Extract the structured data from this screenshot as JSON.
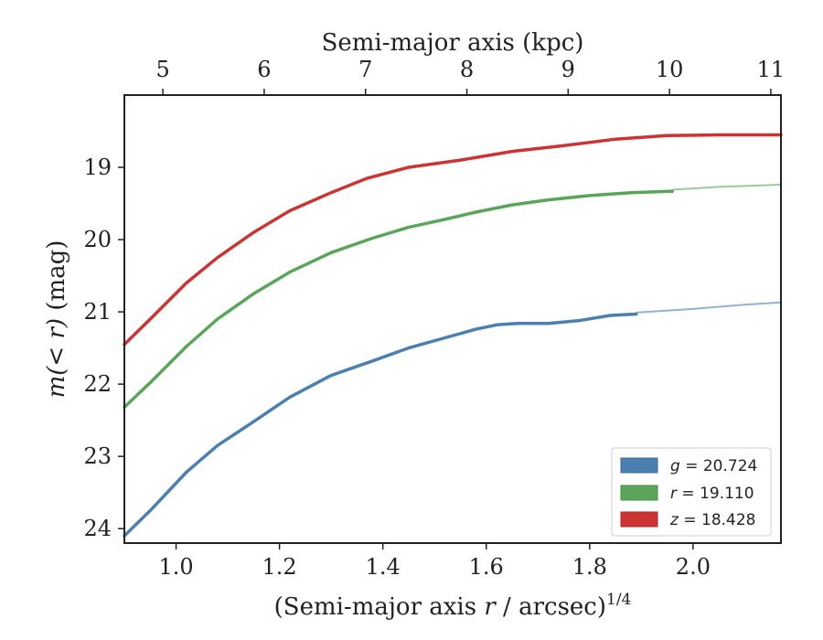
{
  "chart_data": {
    "type": "line",
    "xlabel_bottom_prefix": "(Semi-major axis ",
    "xlabel_bottom_var": "r",
    "xlabel_bottom_suffix": " / arcsec)",
    "xlabel_bottom_exp": "1/4",
    "xlabel_top": "Semi-major axis (kpc)",
    "ylabel_var": "m(< r)",
    "ylabel_unit": " (mag)",
    "xlim": [
      0.9,
      2.17
    ],
    "ylim": [
      24.2,
      18.0
    ],
    "y_inverted": true,
    "xticks": [
      1.0,
      1.2,
      1.4,
      1.6,
      1.8,
      2.0
    ],
    "xtick_labels": [
      "1.0",
      "1.2",
      "1.4",
      "1.6",
      "1.8",
      "2.0"
    ],
    "yticks": [
      19,
      20,
      21,
      22,
      23,
      24
    ],
    "ytick_labels": [
      "19",
      "20",
      "21",
      "22",
      "23",
      "24"
    ],
    "top_ticks_kpc": [
      5,
      6,
      7,
      8,
      9,
      10,
      11
    ],
    "top_tick_labels": [
      "5",
      "6",
      "7",
      "8",
      "9",
      "10",
      "11"
    ],
    "legend_position": "lower-right",
    "grid": false,
    "series": [
      {
        "name": "g = 20.724",
        "band": "g",
        "mag": "20.724",
        "color": "#4a7fb0",
        "x": [
          0.9,
          0.95,
          1.02,
          1.08,
          1.15,
          1.22,
          1.3,
          1.38,
          1.45,
          1.52,
          1.58,
          1.62,
          1.66,
          1.72,
          1.78,
          1.84,
          1.89
        ],
        "values": [
          24.1,
          23.75,
          23.22,
          22.85,
          22.52,
          22.18,
          21.88,
          21.68,
          21.5,
          21.36,
          21.24,
          21.18,
          21.16,
          21.16,
          21.12,
          21.05,
          21.03
        ],
        "model_x": [
          1.89,
          2.0,
          2.1,
          2.17
        ],
        "model_values": [
          21.01,
          20.96,
          20.9,
          20.87
        ]
      },
      {
        "name": "r = 19.110",
        "band": "r",
        "mag": "19.110",
        "color": "#5aa55a",
        "x": [
          0.9,
          0.95,
          1.02,
          1.08,
          1.15,
          1.22,
          1.3,
          1.38,
          1.45,
          1.52,
          1.58,
          1.65,
          1.72,
          1.8,
          1.88,
          1.96
        ],
        "values": [
          22.32,
          21.98,
          21.48,
          21.1,
          20.75,
          20.45,
          20.18,
          19.98,
          19.83,
          19.72,
          19.62,
          19.52,
          19.45,
          19.39,
          19.35,
          19.33
        ],
        "model_x": [
          1.96,
          2.05,
          2.17
        ],
        "model_values": [
          19.31,
          19.27,
          19.24
        ]
      },
      {
        "name": "z = 18.428",
        "band": "z",
        "mag": "18.428",
        "color": "#cc3333",
        "x": [
          0.9,
          0.95,
          1.02,
          1.08,
          1.15,
          1.22,
          1.3,
          1.37,
          1.45,
          1.55,
          1.65,
          1.75,
          1.85,
          1.95,
          2.05,
          2.17
        ],
        "values": [
          21.45,
          21.1,
          20.6,
          20.25,
          19.9,
          19.6,
          19.35,
          19.15,
          19.0,
          18.9,
          18.78,
          18.7,
          18.61,
          18.56,
          18.55,
          18.55
        ],
        "model_x": [],
        "model_values": []
      }
    ]
  }
}
